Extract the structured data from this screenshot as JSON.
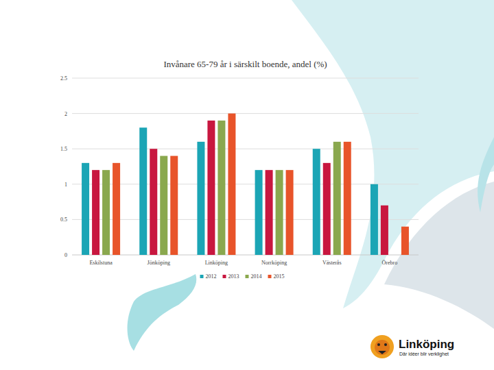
{
  "chart_data": {
    "type": "bar",
    "title": "Invånare 65-79 år i särskilt boende, andel (%)",
    "categories": [
      "Eskilstuna",
      "Jönköping",
      "Linköping",
      "Norrköping",
      "Västerås",
      "Örebro"
    ],
    "series": [
      {
        "name": "2012",
        "color": "#1ba5b5",
        "values": [
          1.3,
          1.8,
          1.6,
          1.2,
          1.5,
          1.0
        ]
      },
      {
        "name": "2013",
        "color": "#c8173f",
        "values": [
          1.2,
          1.5,
          1.9,
          1.2,
          1.3,
          0.7
        ]
      },
      {
        "name": "2014",
        "color": "#8aa84e",
        "values": [
          1.2,
          1.4,
          1.9,
          1.2,
          1.6,
          null
        ]
      },
      {
        "name": "2015",
        "color": "#e8542a",
        "values": [
          1.3,
          1.4,
          2.0,
          1.2,
          1.6,
          0.4
        ]
      }
    ],
    "ylim": [
      0,
      2.5
    ],
    "yticks": [
      0,
      0.5,
      1,
      1.5,
      2,
      2.5
    ],
    "grid": true,
    "legend": "bottom"
  },
  "logo": {
    "name": "Linköping",
    "tagline": "Där idéer blir verklighet"
  }
}
